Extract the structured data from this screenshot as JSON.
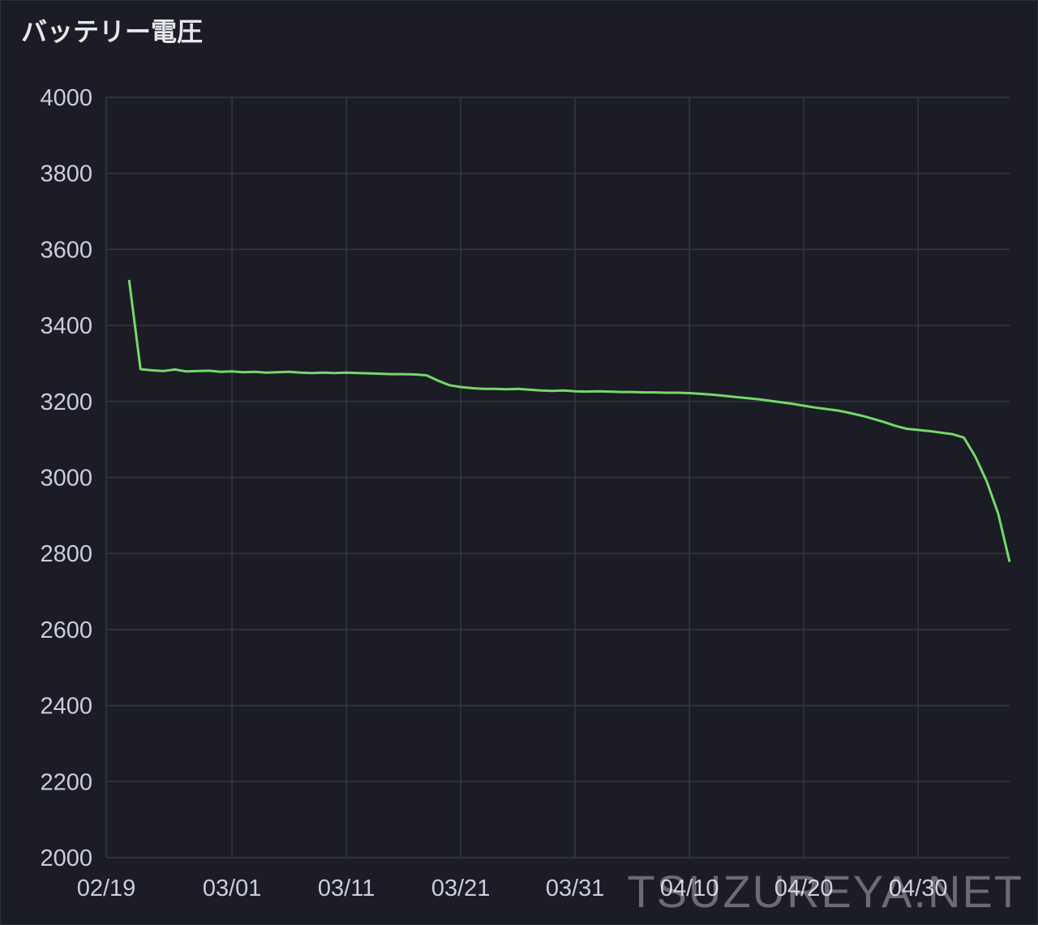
{
  "chart_data": {
    "type": "line",
    "title": "バッテリー電圧",
    "watermark": "TSUZUREYA.NET",
    "x": [
      "02/21",
      "02/22",
      "02/23",
      "02/24",
      "02/25",
      "02/26",
      "02/27",
      "02/28",
      "02/29",
      "03/01",
      "03/02",
      "03/03",
      "03/04",
      "03/05",
      "03/06",
      "03/07",
      "03/08",
      "03/09",
      "03/10",
      "03/11",
      "03/12",
      "03/13",
      "03/14",
      "03/15",
      "03/16",
      "03/17",
      "03/18",
      "03/19",
      "03/20",
      "03/21",
      "03/22",
      "03/23",
      "03/24",
      "03/25",
      "03/26",
      "03/27",
      "03/28",
      "03/29",
      "03/30",
      "03/31",
      "04/01",
      "04/02",
      "04/03",
      "04/04",
      "04/05",
      "04/06",
      "04/07",
      "04/08",
      "04/09",
      "04/10",
      "04/11",
      "04/12",
      "04/13",
      "04/14",
      "04/15",
      "04/16",
      "04/17",
      "04/18",
      "04/19",
      "04/20",
      "04/21",
      "04/22",
      "04/23",
      "04/24",
      "04/25",
      "04/26",
      "04/27",
      "04/28",
      "04/29",
      "04/30",
      "05/01",
      "05/02",
      "05/03",
      "05/04",
      "05/05",
      "05/06",
      "05/07",
      "05/08"
    ],
    "series": [
      {
        "name": "バッテリー電圧",
        "color": "#73d96b",
        "values": [
          3520,
          3285,
          3282,
          3280,
          3284,
          3279,
          3280,
          3281,
          3278,
          3279,
          3277,
          3278,
          3276,
          3277,
          3278,
          3276,
          3275,
          3276,
          3275,
          3276,
          3275,
          3274,
          3273,
          3272,
          3272,
          3271,
          3269,
          3255,
          3243,
          3238,
          3235,
          3233,
          3233,
          3232,
          3233,
          3231,
          3229,
          3228,
          3229,
          3227,
          3226,
          3227,
          3226,
          3225,
          3225,
          3224,
          3224,
          3223,
          3223,
          3222,
          3220,
          3218,
          3215,
          3212,
          3209,
          3206,
          3202,
          3198,
          3194,
          3189,
          3184,
          3180,
          3176,
          3170,
          3163,
          3155,
          3146,
          3136,
          3128,
          3125,
          3122,
          3118,
          3114,
          3105,
          3055,
          2990,
          2905,
          2778
        ]
      }
    ],
    "xlim": [
      "02/19",
      "05/08"
    ],
    "xticks": [
      "02/19",
      "03/01",
      "03/11",
      "03/21",
      "03/31",
      "04/10",
      "04/20",
      "04/30"
    ],
    "ylim": [
      2000,
      4000
    ],
    "yticks": [
      2000,
      2200,
      2400,
      2600,
      2800,
      3000,
      3200,
      3400,
      3600,
      3800,
      4000
    ],
    "grid": true
  }
}
